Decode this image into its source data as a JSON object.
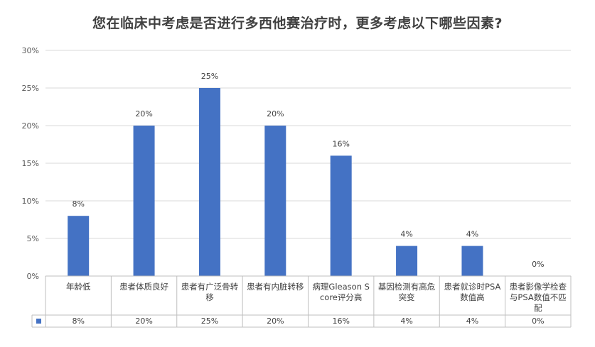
{
  "chart_data": {
    "type": "bar",
    "title": "您在临床中考虑是否进行多西他赛治疗时，更多考虑以下哪些因素?",
    "categories": [
      "年龄低",
      "患者体质良好",
      "患者有广泛骨转移",
      "患者有内脏转移",
      "病理Gleason Score评分高",
      "基因检测有高危突变",
      "患者就诊时PSA数值高",
      "患者影像学检查与PSA数值不匹配"
    ],
    "values": [
      8,
      20,
      25,
      20,
      16,
      4,
      4,
      0
    ],
    "value_labels": [
      "8%",
      "20%",
      "25%",
      "20%",
      "16%",
      "4%",
      "4%",
      "0%"
    ],
    "yticks": [
      "0%",
      "5%",
      "10%",
      "15%",
      "20%",
      "25%",
      "30%"
    ],
    "ylim": [
      0,
      30
    ],
    "grid": true,
    "legend": "data-table",
    "bar_color": "#4472C4"
  }
}
